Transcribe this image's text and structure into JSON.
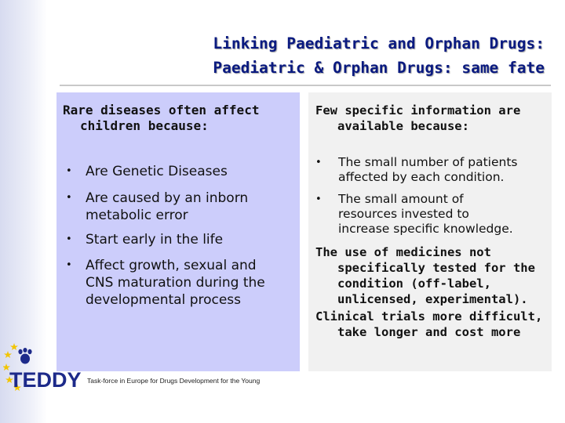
{
  "title": {
    "line1": "Linking Paediatric and Orphan Drugs:",
    "line2": "Paediatric & Orphan Drugs: same fate"
  },
  "left": {
    "heading_line1": "Rare diseases often affect",
    "heading_line2": "children because:",
    "bullets": [
      {
        "lines": [
          "Are Genetic Diseases"
        ]
      },
      {
        "lines": [
          "Are caused by an inborn",
          "metabolic error"
        ]
      },
      {
        "lines": [
          "Start early in the life"
        ]
      },
      {
        "lines": [
          "Affect growth, sexual and",
          "CNS maturation during the",
          "developmental process"
        ]
      }
    ]
  },
  "right": {
    "heading_line1": "Few specific information are",
    "heading_line2": "available because:",
    "bullets": [
      {
        "lines": [
          "The small number of patients",
          "affected by each condition."
        ]
      },
      {
        "lines": [
          "The small amount of",
          "resources invested to",
          "increase specific knowledge."
        ]
      }
    ],
    "para1": [
      "The use of medicines not",
      "specifically tested for the",
      "condition (off-label,",
      "unlicensed, experimental)."
    ],
    "para2": [
      "Clinical trials  more difficult,",
      "take longer and cost more"
    ]
  },
  "logo": {
    "text": "TEDDY",
    "tagline": "Task-force in Europe for Drugs Development for the Young",
    "star_color": "#f2c500",
    "paw_color": "#1d2a8a"
  },
  "bullet_glyph": "•"
}
